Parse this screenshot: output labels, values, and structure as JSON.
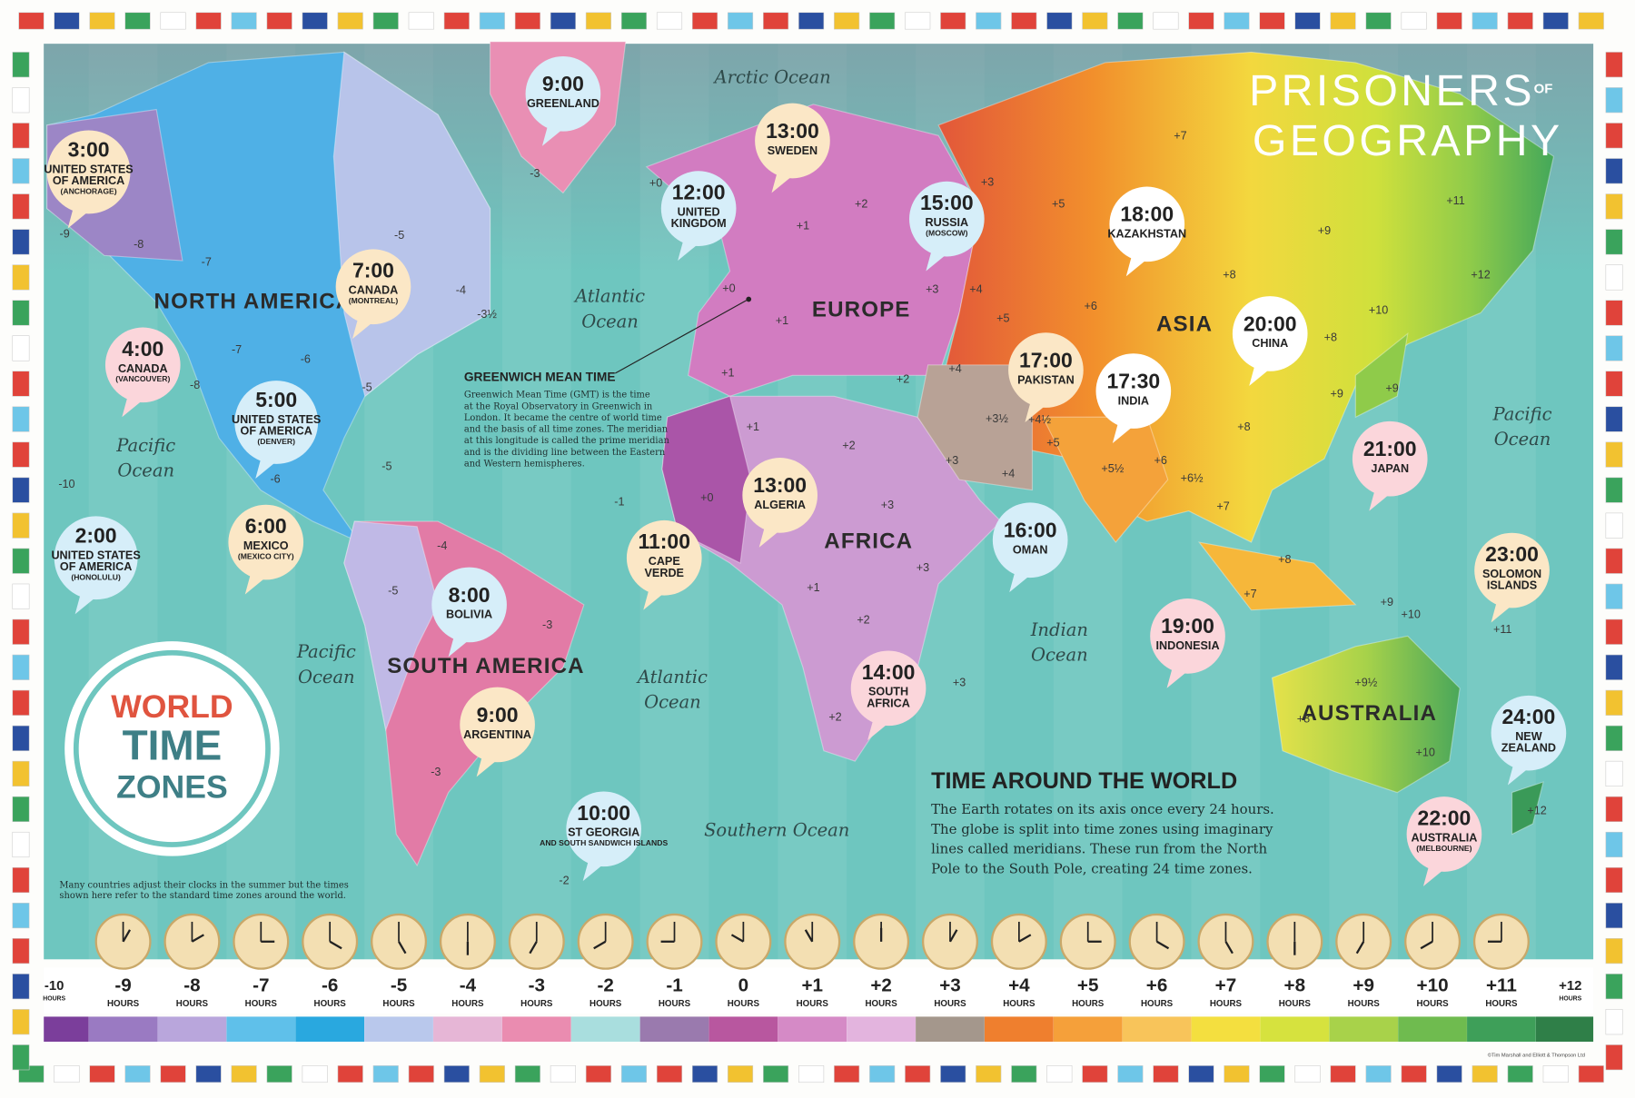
{
  "brand": {
    "line1": "PRISONERS",
    "of": "OF",
    "line2": "GEOGRAPHY"
  },
  "badge": {
    "line1": "WORLD",
    "line2": "TIME",
    "line3": "ZONES"
  },
  "continents": [
    "NORTH AMERICA",
    "EUROPE",
    "ASIA",
    "AFRICA",
    "SOUTH AMERICA",
    "AUSTRALIA"
  ],
  "oceans": [
    [
      "Arctic Ocean"
    ],
    [
      "Atlantic",
      "Ocean"
    ],
    [
      "Pacific",
      "Ocean"
    ],
    [
      "Pacific",
      "Ocean"
    ],
    [
      "Atlantic",
      "Ocean"
    ],
    [
      "Indian",
      "Ocean"
    ],
    [
      "Southern Ocean"
    ],
    [
      "Pacific",
      "Ocean"
    ]
  ],
  "bubbles": [
    {
      "time": "3:00",
      "place": [
        "UNITED STATES",
        "OF AMERICA"
      ],
      "detail": "(ANCHORAGE)"
    },
    {
      "time": "12:00",
      "place": [
        "UNITED",
        "KINGDOM"
      ]
    },
    {
      "time": "9:00",
      "place": [
        "GREENLAND"
      ]
    },
    {
      "time": "13:00",
      "place": [
        "SWEDEN"
      ]
    },
    {
      "time": "15:00",
      "place": [
        "RUSSIA"
      ],
      "detail": "(MOSCOW)"
    },
    {
      "time": "18:00",
      "place": [
        "KAZAKHSTAN"
      ]
    },
    {
      "time": "7:00",
      "place": [
        "CANADA"
      ],
      "detail": "(MONTREAL)"
    },
    {
      "time": "4:00",
      "place": [
        "CANADA"
      ],
      "detail": "(VANCOUVER)"
    },
    {
      "time": "5:00",
      "place": [
        "UNITED STATES",
        "OF AMERICA"
      ],
      "detail": "(DENVER)"
    },
    {
      "time": "17:00",
      "place": [
        "PAKISTAN"
      ]
    },
    {
      "time": "17:30",
      "place": [
        "INDIA"
      ]
    },
    {
      "time": "20:00",
      "place": [
        "CHINA"
      ]
    },
    {
      "time": "21:00",
      "place": [
        "JAPAN"
      ]
    },
    {
      "time": "13:00",
      "place": [
        "ALGERIA"
      ]
    },
    {
      "time": "16:00",
      "place": [
        "OMAN"
      ]
    },
    {
      "time": "11:00",
      "place": [
        "CAPE",
        "VERDE"
      ]
    },
    {
      "time": "6:00",
      "place": [
        "MEXICO"
      ],
      "detail": "(MEXICO CITY)"
    },
    {
      "time": "2:00",
      "place": [
        "UNITED STATES",
        "OF AMERICA"
      ],
      "detail": "(HONOLULU)"
    },
    {
      "time": "8:00",
      "place": [
        "BOLIVIA"
      ]
    },
    {
      "time": "23:00",
      "place": [
        "SOLOMON",
        "ISLANDS"
      ]
    },
    {
      "time": "19:00",
      "place": [
        "INDONESIA"
      ]
    },
    {
      "time": "14:00",
      "place": [
        "SOUTH",
        "AFRICA"
      ]
    },
    {
      "time": "9:00",
      "place": [
        "ARGENTINA"
      ]
    },
    {
      "time": "24:00",
      "place": [
        "NEW",
        "ZEALAND"
      ]
    },
    {
      "time": "10:00",
      "place": [
        "ST GEORGIA"
      ],
      "detail": "AND SOUTH SANDWICH ISLANDS"
    },
    {
      "time": "22:00",
      "place": [
        "AUSTRALIA"
      ],
      "detail": "(MELBOURNE)"
    }
  ],
  "zone_labels": [
    "-9",
    "-8",
    "-7",
    "-7",
    "-6",
    "-8",
    "-5",
    "-5",
    "-5",
    "-6",
    "-10",
    "-4",
    "-3½",
    "-3",
    "+0",
    "+0",
    "+1",
    "+2",
    "+3",
    "+1",
    "+1",
    "+2",
    "+3",
    "+4",
    "+5",
    "+5",
    "+6",
    "+7",
    "+8",
    "+9",
    "+10",
    "+11",
    "+12",
    "+8",
    "+9",
    "+9",
    "+4",
    "+3½",
    "+4½",
    "+5",
    "+5½",
    "+6",
    "+6½",
    "+7",
    "+8",
    "+3",
    "+4",
    "+1",
    "+2",
    "+0",
    "-1",
    "+3",
    "+3",
    "+1",
    "+2",
    "+3",
    "+2",
    "-4",
    "-5",
    "-3",
    "-3",
    "-2",
    "+8",
    "+7",
    "+9",
    "+10",
    "+11",
    "+9½",
    "+8",
    "+10",
    "+12"
  ],
  "gmt": {
    "title": "GREENWICH MEAN TIME",
    "lines": [
      "Greenwich Mean Time (GMT) is the time",
      "at the Royal Observatory in Greenwich in",
      "London. It became the centre of world time",
      "and the basis of all time zones. The meridian",
      "at this longitude is called the prime meridian",
      "and is the dividing line between the Eastern",
      "and Western hemispheres."
    ]
  },
  "info": {
    "title": "TIME AROUND THE WORLD",
    "lines": [
      "The Earth rotates on its axis once every 24 hours.",
      "The globe is split into time zones using imaginary",
      "lines called meridians. These run from the North",
      "Pole to the South Pole, creating 24 time zones."
    ]
  },
  "note": [
    "Many countries adjust their clocks in the summer but the times",
    "shown here refer to the standard time zones around the world."
  ],
  "hours": [
    {
      "offset": "-10",
      "unit": "HOURS"
    },
    {
      "offset": "-9",
      "unit": "HOURS"
    },
    {
      "offset": "-8",
      "unit": "HOURS"
    },
    {
      "offset": "-7",
      "unit": "HOURS"
    },
    {
      "offset": "-6",
      "unit": "HOURS"
    },
    {
      "offset": "-5",
      "unit": "HOURS"
    },
    {
      "offset": "-4",
      "unit": "HOURS"
    },
    {
      "offset": "-3",
      "unit": "HOURS"
    },
    {
      "offset": "-2",
      "unit": "HOURS"
    },
    {
      "offset": "-1",
      "unit": "HOURS"
    },
    {
      "offset": "0",
      "unit": "HOURS"
    },
    {
      "offset": "+1",
      "unit": "HOURS"
    },
    {
      "offset": "+2",
      "unit": "HOURS"
    },
    {
      "offset": "+3",
      "unit": "HOURS"
    },
    {
      "offset": "+4",
      "unit": "HOURS"
    },
    {
      "offset": "+5",
      "unit": "HOURS"
    },
    {
      "offset": "+6",
      "unit": "HOURS"
    },
    {
      "offset": "+7",
      "unit": "HOURS"
    },
    {
      "offset": "+8",
      "unit": "HOURS"
    },
    {
      "offset": "+9",
      "unit": "HOURS"
    },
    {
      "offset": "+10",
      "unit": "HOURS"
    },
    {
      "offset": "+11",
      "unit": "HOURS"
    },
    {
      "offset": "+12",
      "unit": "HOURS"
    }
  ],
  "copyright": "©Tim Marshall and Elliott & Thompson Ltd"
}
